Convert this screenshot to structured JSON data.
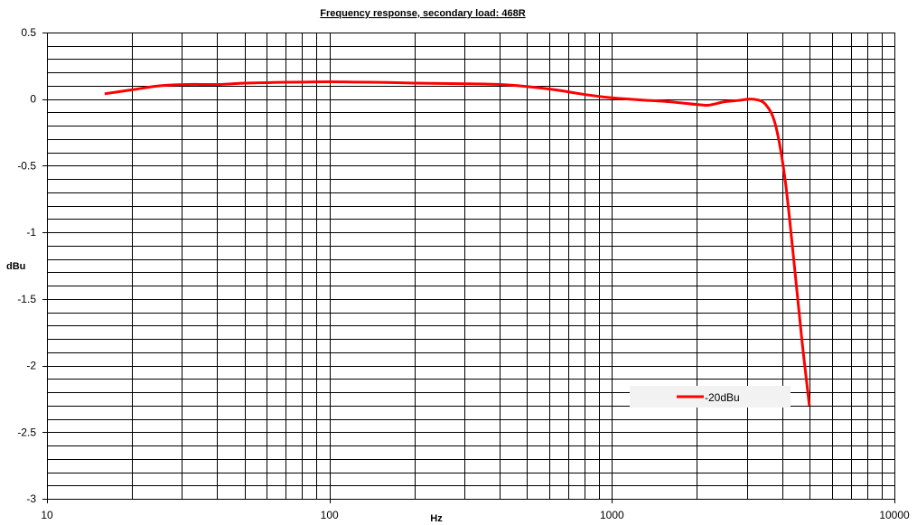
{
  "chart_data": {
    "type": "line",
    "title": "Frequency response, secondary load: 468R",
    "xlabel": "Hz",
    "ylabel": "dBu",
    "x_scale": "log",
    "xlim": [
      10,
      10000
    ],
    "ylim": [
      -3,
      0.5
    ],
    "x_major_ticks": [
      "10",
      "100",
      "1000",
      "10000"
    ],
    "y_major_ticks": [
      "0.5",
      "0",
      "-0.5",
      "-1",
      "-1.5",
      "-2",
      "-2.5",
      "-3"
    ],
    "y_minor_step": 0.1,
    "grid": true,
    "legend_position": "bottom-right",
    "series": [
      {
        "name": "-20dBu",
        "color": "#ff0000",
        "x": [
          16,
          20,
          25,
          31.5,
          40,
          50,
          63,
          80,
          100,
          125,
          160,
          200,
          250,
          315,
          400,
          500,
          630,
          800,
          1000,
          1250,
          1600,
          2000,
          2200,
          2500,
          2800,
          3150,
          3500,
          3800,
          4100,
          4400,
          4700,
          5000
        ],
        "y": [
          0.04,
          0.07,
          0.1,
          0.11,
          0.11,
          0.12,
          0.125,
          0.128,
          0.13,
          0.128,
          0.125,
          0.12,
          0.118,
          0.115,
          0.11,
          0.095,
          0.07,
          0.035,
          0.01,
          -0.005,
          -0.02,
          -0.04,
          -0.045,
          -0.02,
          -0.01,
          0.0,
          -0.04,
          -0.2,
          -0.6,
          -1.2,
          -1.8,
          -2.3
        ]
      }
    ]
  }
}
